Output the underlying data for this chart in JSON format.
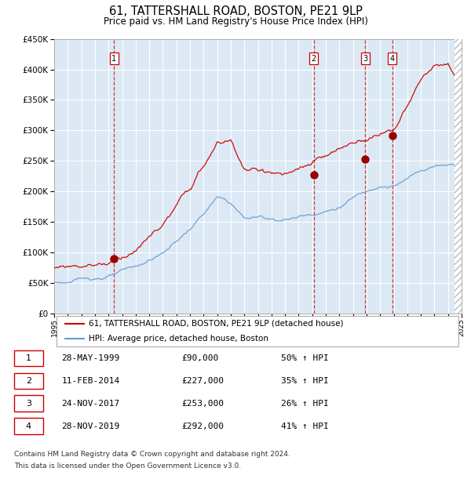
{
  "title": "61, TATTERSHALL ROAD, BOSTON, PE21 9LP",
  "subtitle": "Price paid vs. HM Land Registry's House Price Index (HPI)",
  "red_line_label": "61, TATTERSHALL ROAD, BOSTON, PE21 9LP (detached house)",
  "blue_line_label": "HPI: Average price, detached house, Boston",
  "transactions": [
    {
      "num": 1,
      "date": "28-MAY-1999",
      "price": 90000,
      "hpi_change": "50% ↑ HPI"
    },
    {
      "num": 2,
      "date": "11-FEB-2014",
      "price": 227000,
      "hpi_change": "35% ↑ HPI"
    },
    {
      "num": 3,
      "date": "24-NOV-2017",
      "price": 253000,
      "hpi_change": "26% ↑ HPI"
    },
    {
      "num": 4,
      "date": "28-NOV-2019",
      "price": 292000,
      "hpi_change": "41% ↑ HPI"
    }
  ],
  "footnote1": "Contains HM Land Registry data © Crown copyright and database right 2024.",
  "footnote2": "This data is licensed under the Open Government Licence v3.0.",
  "ylim": [
    0,
    450000
  ],
  "yticks": [
    0,
    50000,
    100000,
    150000,
    200000,
    250000,
    300000,
    350000,
    400000,
    450000
  ],
  "background_color": "#dce9f5",
  "red_color": "#cc0000",
  "blue_color": "#6699cc",
  "marker_color": "#990000",
  "hpi_key_years": [
    1995,
    1997,
    1999,
    2001,
    2003,
    2005,
    2007,
    2008,
    2009,
    2010,
    2011,
    2012,
    2013,
    2014,
    2015,
    2016,
    2017,
    2018,
    2019,
    2020,
    2021,
    2022,
    2023,
    2024,
    2025
  ],
  "hpi_key_vals": [
    50000,
    54000,
    62000,
    72000,
    95000,
    135000,
    185000,
    175000,
    150000,
    152000,
    150000,
    150000,
    155000,
    162000,
    168000,
    175000,
    190000,
    200000,
    215000,
    215000,
    225000,
    240000,
    248000,
    252000,
    255000
  ],
  "red_key_years": [
    1995,
    1997,
    1999,
    2001,
    2003,
    2005,
    2007,
    2008,
    2009,
    2010,
    2011,
    2012,
    2013,
    2014,
    2015,
    2016,
    2017,
    2018,
    2019,
    2020,
    2021,
    2022,
    2023,
    2024,
    2025
  ],
  "red_key_vals": [
    75000,
    82000,
    90000,
    115000,
    155000,
    210000,
    280000,
    285000,
    240000,
    235000,
    235000,
    230000,
    232000,
    240000,
    248000,
    255000,
    265000,
    275000,
    285000,
    295000,
    330000,
    370000,
    395000,
    390000,
    355000
  ]
}
